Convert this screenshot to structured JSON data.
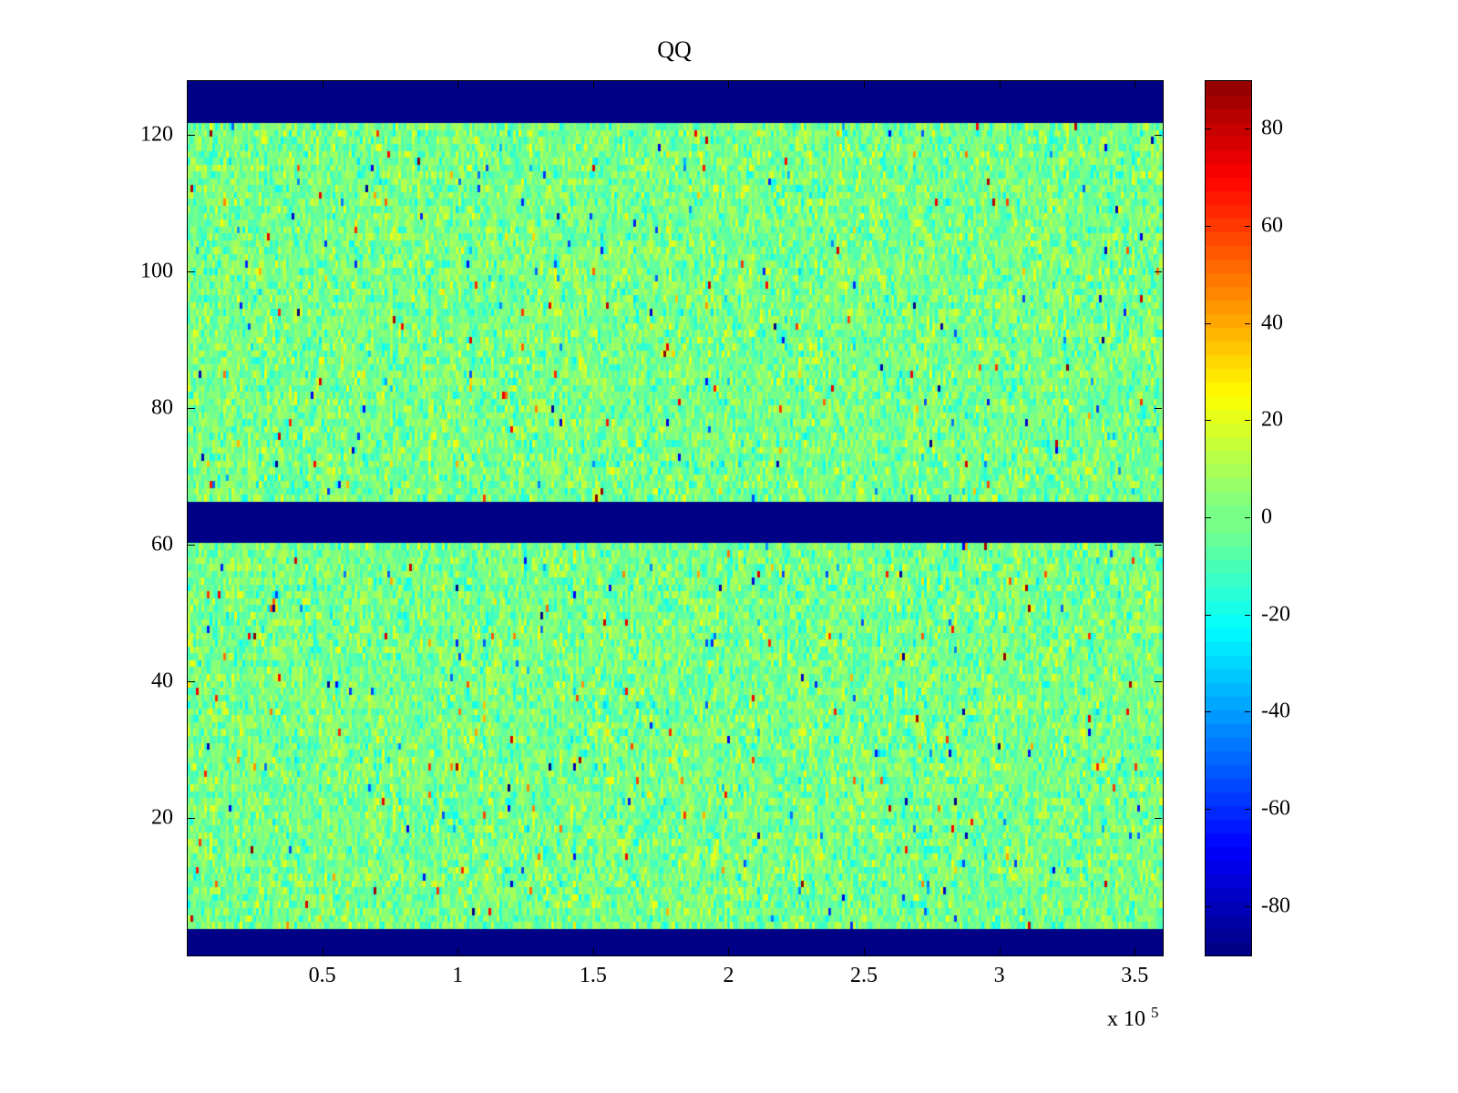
{
  "figure": {
    "background": "#ffffff"
  },
  "chart_data": {
    "type": "heatmap",
    "title": "QQ",
    "xlabel": "",
    "ylabel": "",
    "x_range": [
      0,
      360000
    ],
    "y_range": [
      0,
      128
    ],
    "x_ticks": {
      "values": [
        50000,
        100000,
        150000,
        200000,
        250000,
        300000,
        350000
      ],
      "labels": [
        "0.5",
        "1",
        "1.5",
        "2",
        "2.5",
        "3",
        "3.5"
      ]
    },
    "x_multiplier_base": "x 10",
    "x_multiplier_exp": "5",
    "y_ticks": {
      "values": [
        20,
        40,
        60,
        80,
        100,
        120
      ],
      "labels": [
        "20",
        "40",
        "60",
        "80",
        "100",
        "120"
      ]
    },
    "colormap": "jet",
    "colormap_levels": 64,
    "color_range": [
      -90,
      90
    ],
    "colorbar_ticks": {
      "values": [
        80,
        60,
        40,
        20,
        0,
        -20,
        -40,
        -60,
        -80
      ],
      "labels": [
        "80",
        "60",
        "40",
        "20",
        "0",
        "-20",
        "-40",
        "-60",
        "-80"
      ]
    },
    "background_bands": [
      {
        "y_from": 121.5,
        "y_to": 128,
        "value": -90
      },
      {
        "y_from": 60.5,
        "y_to": 66.5,
        "value": -90
      },
      {
        "y_from": 0,
        "y_to": 4,
        "value": -90
      }
    ],
    "noise": {
      "mean": 0,
      "std": 9,
      "spike_probability": 0.012,
      "spike_min": 25,
      "spike_max": 85
    },
    "grid": {
      "cols": 356,
      "rows": 127
    },
    "seed": 42,
    "grid_lines": false,
    "legend": "none"
  }
}
